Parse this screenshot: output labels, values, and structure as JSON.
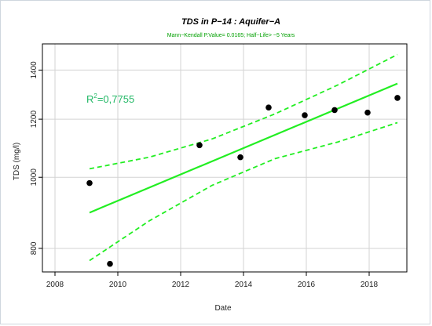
{
  "chart_data": {
    "type": "scatter",
    "title": "TDS in P−14 : Aquifer−A",
    "subtitle": "Mann−Kendall P.Value= 0.0165; Half−Life> ~5 Years",
    "xlabel": "Date",
    "ylabel": "TDS (mg/l)",
    "y_scale": "log",
    "xlim": [
      2007.6,
      2019.2
    ],
    "ylim": [
      743,
      1520
    ],
    "x_ticks": [
      2008,
      2010,
      2012,
      2014,
      2016,
      2018
    ],
    "y_ticks": [
      800,
      1000,
      1200,
      1400
    ],
    "grid": true,
    "annotation": {
      "base": "R",
      "sup": "2",
      "value": "=0,7755"
    },
    "colors": {
      "points": "#000000",
      "trend": "#22ee22",
      "confidence": "#22ee22",
      "grid": "#d3d3d3",
      "annotation": "#22b866",
      "subtitle": "#00a000"
    },
    "points": [
      {
        "x": 2009.1,
        "y": 982
      },
      {
        "x": 2009.75,
        "y": 762
      },
      {
        "x": 2012.6,
        "y": 1106
      },
      {
        "x": 2013.9,
        "y": 1065
      },
      {
        "x": 2014.8,
        "y": 1245
      },
      {
        "x": 2015.95,
        "y": 1215
      },
      {
        "x": 2016.9,
        "y": 1235
      },
      {
        "x": 2017.95,
        "y": 1225
      },
      {
        "x": 2018.9,
        "y": 1283
      }
    ],
    "trend_line": [
      {
        "x": 2009.1,
        "y": 895
      },
      {
        "x": 2018.9,
        "y": 1342
      }
    ],
    "confidence_upper": [
      {
        "x": 2009.1,
        "y": 1027
      },
      {
        "x": 2011.0,
        "y": 1065
      },
      {
        "x": 2013.0,
        "y": 1128
      },
      {
        "x": 2015.0,
        "y": 1220
      },
      {
        "x": 2017.0,
        "y": 1336
      },
      {
        "x": 2018.9,
        "y": 1470
      }
    ],
    "confidence_lower": [
      {
        "x": 2009.1,
        "y": 770
      },
      {
        "x": 2011.0,
        "y": 872
      },
      {
        "x": 2013.0,
        "y": 975
      },
      {
        "x": 2015.0,
        "y": 1060
      },
      {
        "x": 2017.0,
        "y": 1117
      },
      {
        "x": 2018.9,
        "y": 1187
      }
    ]
  }
}
